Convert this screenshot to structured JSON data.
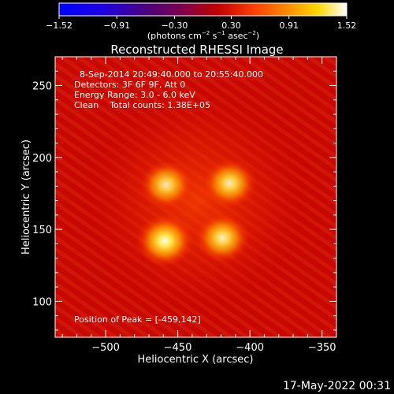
{
  "chart_data": {
    "type": "heatmap",
    "title": "Reconstructed RHESSI Image",
    "xlabel": "Heliocentric X (arcsec)",
    "ylabel": "Heliocentric Y (arcsec)",
    "xlim": [
      -535,
      -340
    ],
    "ylim": [
      75,
      270
    ],
    "x_ticks": [
      -500,
      -450,
      -400,
      -350
    ],
    "x_tick_labels": [
      "−500",
      "−450",
      "−400",
      "−350"
    ],
    "y_ticks": [
      100,
      150,
      200,
      250
    ],
    "y_tick_labels": [
      "100",
      "150",
      "200",
      "250"
    ],
    "colorbar": {
      "min": -1.52,
      "max": 1.52,
      "ticks": [
        -1.52,
        -0.91,
        -0.3,
        0.3,
        0.91,
        1.52
      ],
      "tick_labels": [
        "−1.52",
        "−0.91",
        "−0.30",
        "0.30",
        "0.91",
        "1.52"
      ],
      "units_prefix": "(photons cm",
      "units_mid1": " s",
      "units_mid2": " asec",
      "units_suffix": ")",
      "units_sup": "−2",
      "units_sup_s": "−1",
      "colormap": "blue-purple-red-yellow-white"
    },
    "sources": [
      {
        "x": -459,
        "y": 142,
        "peak": 1.52
      },
      {
        "x": -419,
        "y": 144,
        "peak": 1.2
      },
      {
        "x": -458,
        "y": 181,
        "peak": 1.05
      },
      {
        "x": -414,
        "y": 182,
        "peak": 1.15
      }
    ],
    "background_level": 0.55,
    "annotations": {
      "time": "8-Sep-2014 20:49:40.000 to 20:55:40.000",
      "detectors": "Detectors: 3F 6F 9F, Att 0",
      "energy": "Energy Range: 3.0 - 6.0 keV",
      "clean": "Clean    Total counts: 1.38E+05",
      "peak": "Position of Peak = [-459,142]"
    }
  },
  "footer": {
    "timestamp": "17-May-2022 00:31"
  }
}
